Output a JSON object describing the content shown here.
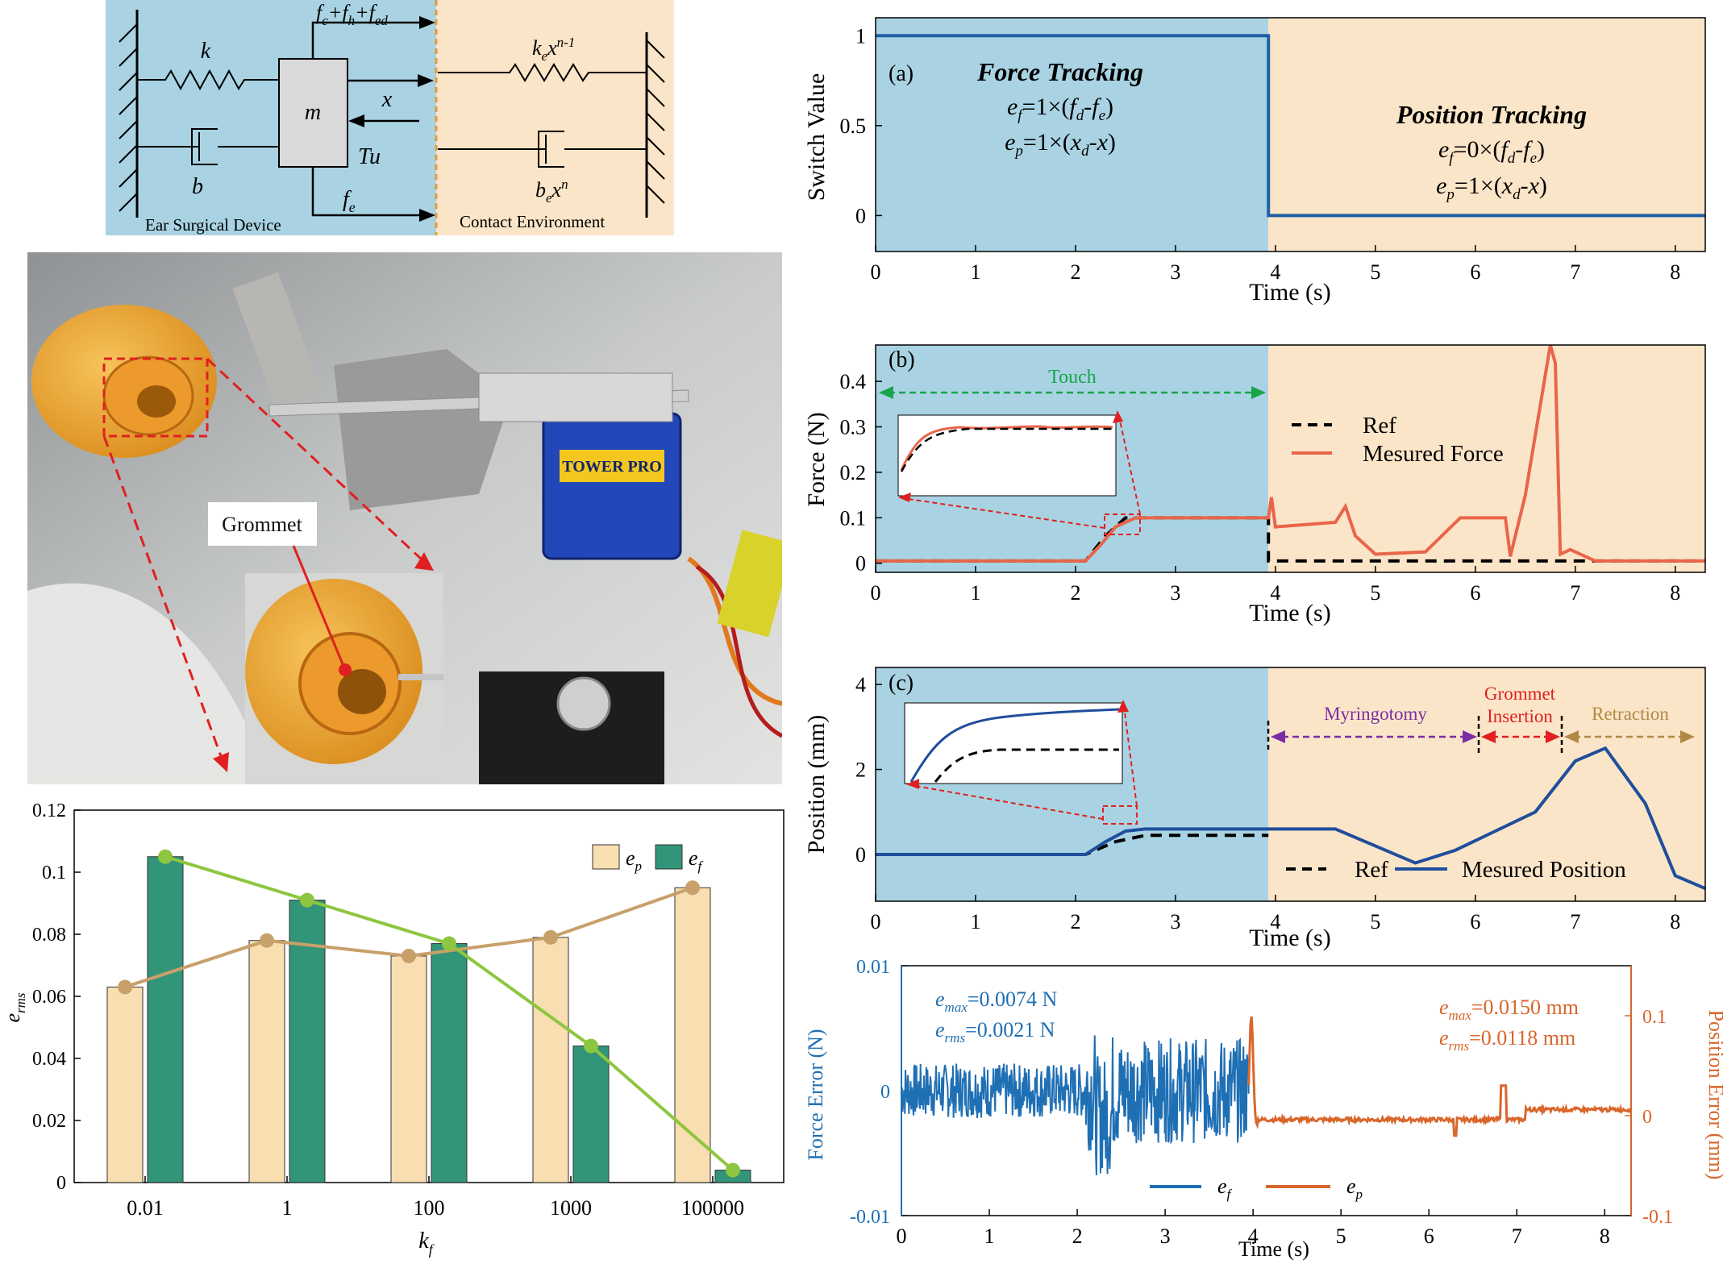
{
  "diagram": {
    "colors": {
      "device_bg": "#a9d3e3",
      "env_bg": "#fbe5c8"
    },
    "labels": {
      "k": "k",
      "b": "b",
      "m": "m",
      "forces_top_a": "f",
      "forces_top_a_sub": "c",
      "forces_top_b": "+f",
      "forces_top_b_sub": "h",
      "forces_top_c": "+f",
      "forces_top_c_sub": "ed",
      "x": "x",
      "tu": "Tu",
      "fe": "f",
      "fe_sub": "e",
      "spring_env": "k",
      "spring_env_sub": "e",
      "spring_env_x": "x",
      "spring_env_sup": "n-1",
      "damper_env": "b",
      "damper_env_sub": "e",
      "damper_env_x": "x",
      "damper_env_sup": "n",
      "device": "Ear Surgical Device",
      "environment": "Contact Environment"
    }
  },
  "photo": {
    "label": "Grommet",
    "servo_brand": "TOWER PRO"
  },
  "charts": {
    "bar": {
      "colors": {
        "ep": "#f9deb1",
        "ef": "#329478",
        "ep_line": "#c8a06a",
        "ef_line": "#8dc63f"
      },
      "legend": {
        "ep": "e",
        "ep_sub": "p",
        "ef": "e",
        "ef_sub": "f"
      },
      "ylabel": "e",
      "ylabel_sub": "rms",
      "xlabel": "k",
      "xlabel_sub": "f"
    },
    "switch": {
      "panel_label": "(a)",
      "ylabel": "Switch Value",
      "xlabel": "Time (s)",
      "force_title": "Force Tracking",
      "position_title": "Position Tracking",
      "force_eq1": "e_f=1×(f_d-f_e)",
      "force_eq2": "e_p=1×(x_d-x)",
      "pos_eq1": "e_f=0×(f_d-f_e)",
      "pos_eq2": "e_p=1×(x_d-x)",
      "line_color": "#1f5fa6"
    },
    "force": {
      "panel_label": "(b)",
      "ylabel": "Force (N)",
      "xlabel": "Time (s)",
      "touch": "Touch",
      "legend_ref": "Ref",
      "legend_meas": "Mesured Force",
      "line_color": "#e9654a"
    },
    "position": {
      "panel_label": "(c)",
      "ylabel": "Position (mm)",
      "xlabel": "Time (s)",
      "myringotomy": "Myringotomy",
      "grommet1": "Grommet",
      "grommet2": "Insertion",
      "retraction": "Retraction",
      "legend_ref": "Ref",
      "legend_meas": "Mesured Position",
      "line_color": "#1f4e9c"
    },
    "error": {
      "ylabel_left": "Force Error (N)",
      "ylabel_right": "Position Error (mm)",
      "xlabel": "Time (s)",
      "force_stats1": "e_max=0.0074 N",
      "force_stats2": "e_rms=0.0021 N",
      "pos_stats1": "e_max=0.0150 mm",
      "pos_stats2": "e_rms=0.0118 mm",
      "legend_ef": "e_f",
      "legend_ep": "e_p",
      "left_color": "#1f6fb4",
      "right_color": "#d9662b"
    }
  },
  "chart_data": [
    {
      "type": "bar",
      "categories": [
        "0.01",
        "1",
        "100",
        "1000",
        "100000"
      ],
      "series": [
        {
          "name": "e_p",
          "values": [
            0.063,
            0.078,
            0.073,
            0.079,
            0.095
          ]
        },
        {
          "name": "e_f",
          "values": [
            0.105,
            0.091,
            0.077,
            0.044,
            0.004
          ]
        }
      ],
      "xlabel": "k_f",
      "ylabel": "e_rms",
      "ylim": [
        0,
        0.12
      ],
      "yticks": [
        "0",
        "0.02",
        "0.04",
        "0.06",
        "0.08",
        "0.1",
        "0.12"
      ]
    },
    {
      "type": "line",
      "title": "(a)",
      "series": [
        {
          "name": "Switch Value",
          "x": [
            0,
            3.93,
            3.93,
            8.3
          ],
          "y": [
            1,
            1,
            0,
            0
          ]
        }
      ],
      "xlim": [
        0,
        8.3
      ],
      "ylim": [
        -0.2,
        1.1
      ],
      "xticks": [
        "0",
        "1",
        "2",
        "3",
        "4",
        "5",
        "6",
        "7",
        "8"
      ],
      "yticks": [
        "0",
        "0.5",
        "1"
      ],
      "xlabel": "Time (s)",
      "ylabel": "Switch Value"
    },
    {
      "type": "line",
      "title": "(b)",
      "series": [
        {
          "name": "Ref",
          "x": [
            0,
            2.1,
            2.3,
            2.5,
            3.93,
            3.93,
            8.3
          ],
          "y": [
            0.005,
            0.005,
            0.06,
            0.1,
            0.1,
            0.005,
            0.005
          ]
        },
        {
          "name": "Mesured Force",
          "x": [
            0,
            2.1,
            2.25,
            2.4,
            2.6,
            3.93,
            3.96,
            4.0,
            4.6,
            4.7,
            4.8,
            5.0,
            5.5,
            5.85,
            6.3,
            6.35,
            6.5,
            6.75,
            6.8,
            6.85,
            6.95,
            7.2,
            8.3
          ],
          "y": [
            0.005,
            0.005,
            0.04,
            0.08,
            0.1,
            0.1,
            0.145,
            0.08,
            0.09,
            0.125,
            0.06,
            0.02,
            0.025,
            0.1,
            0.1,
            0.015,
            0.15,
            0.48,
            0.44,
            0.02,
            0.03,
            0.005,
            0.005
          ]
        }
      ],
      "xlim": [
        0,
        8.3
      ],
      "ylim": [
        -0.02,
        0.48
      ],
      "xticks": [
        "0",
        "1",
        "2",
        "3",
        "4",
        "5",
        "6",
        "7",
        "8"
      ],
      "yticks": [
        "0",
        "0.1",
        "0.2",
        "0.3",
        "0.4"
      ],
      "xlabel": "Time (s)",
      "ylabel": "Force (N)"
    },
    {
      "type": "line",
      "title": "(c)",
      "series": [
        {
          "name": "Ref",
          "x": [
            0,
            2.1,
            2.4,
            2.7,
            3.93
          ],
          "y": [
            0,
            0,
            0.3,
            0.45,
            0.45
          ]
        },
        {
          "name": "Mesured Position",
          "x": [
            0,
            2.1,
            2.3,
            2.5,
            2.7,
            3.93,
            4.6,
            5.0,
            5.4,
            5.8,
            6.2,
            6.6,
            7.0,
            7.3,
            7.7,
            8.0,
            8.3
          ],
          "y": [
            0,
            0,
            0.3,
            0.55,
            0.6,
            0.6,
            0.6,
            0.2,
            -0.2,
            0.1,
            0.55,
            1.0,
            2.2,
            2.5,
            1.2,
            -0.5,
            -0.8
          ]
        }
      ],
      "xlim": [
        0,
        8.3
      ],
      "ylim": [
        -1.1,
        4.4
      ],
      "xticks": [
        "0",
        "1",
        "2",
        "3",
        "4",
        "5",
        "6",
        "7",
        "8"
      ],
      "yticks": [
        "0",
        "2",
        "4"
      ],
      "xlabel": "Time (s)",
      "ylabel": "Position (mm)"
    },
    {
      "type": "line",
      "series": [
        {
          "name": "e_f",
          "x_range": [
            0,
            3.95
          ],
          "max": 0.0074,
          "rms": 0.0021
        },
        {
          "name": "e_p",
          "x_range": [
            3.95,
            8.3
          ],
          "max": 0.015,
          "rms": 0.0118
        }
      ],
      "xlim": [
        0,
        8.3
      ],
      "ylim_left": [
        -0.01,
        0.01
      ],
      "ylim_right": [
        -0.1,
        0.15
      ],
      "xticks": [
        "0",
        "1",
        "2",
        "3",
        "4",
        "5",
        "6",
        "7",
        "8"
      ],
      "yticks_left": [
        "-0.01",
        "0",
        "0.01"
      ],
      "yticks_right": [
        "-0.1",
        "0",
        "0.1"
      ],
      "xlabel": "Time (s)",
      "ylabel_left": "Force Error (N)",
      "ylabel_right": "Position Error (mm)"
    }
  ]
}
